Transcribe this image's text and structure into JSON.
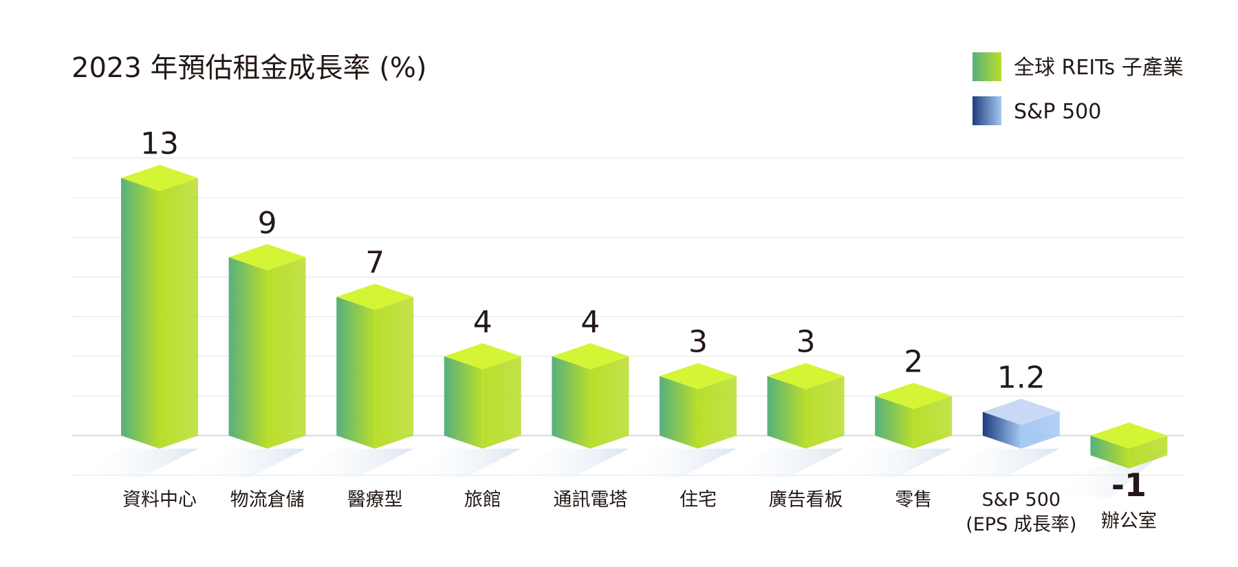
{
  "chart_data": {
    "type": "bar",
    "title": "2023 年預估租金成長率 (%)",
    "categories": [
      "資料中心",
      "物流倉儲",
      "醫療型",
      "旅館",
      "通訊電塔",
      "住宅",
      "廣告看板",
      "零售",
      "S&P 500",
      "辦公室"
    ],
    "category_sublabels": [
      "",
      "",
      "",
      "",
      "",
      "",
      "",
      "",
      "(EPS 成長率)",
      ""
    ],
    "value_labels": [
      "13",
      "9",
      "7",
      "4",
      "4",
      "3",
      "3",
      "2",
      "1.2",
      "-1"
    ],
    "values": [
      13,
      9,
      7,
      4,
      4,
      3,
      3,
      2,
      1.2,
      -1
    ],
    "series_index": [
      0,
      0,
      0,
      0,
      0,
      0,
      0,
      0,
      1,
      0
    ],
    "series": [
      {
        "name": "全球 REITs 子產業",
        "color_dark": "#57b07c",
        "color_light": "#b9de2c",
        "color_top": "#d4f536"
      },
      {
        "name": "S&P 500",
        "color_dark": "#1e3c7d",
        "color_light": "#a4c8f2",
        "color_top": "#c9d9f5"
      }
    ],
    "ylim": [
      -2,
      14
    ],
    "grid": true,
    "legend": "top-right",
    "xlabel": "",
    "ylabel": ""
  }
}
